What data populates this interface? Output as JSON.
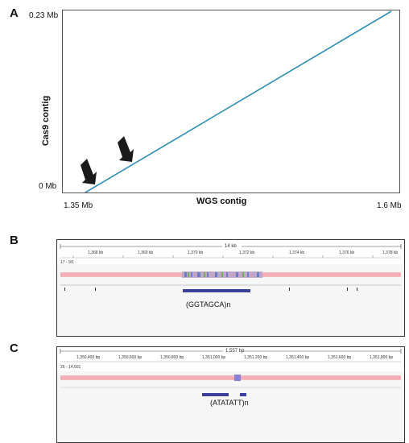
{
  "panelA": {
    "letter": "A",
    "ytop": "0.23 Mb",
    "ybottom": "0 Mb",
    "ylabel": "Cas9 contig",
    "xleft": "1.35 Mb",
    "xright": "1.6 Mb",
    "xlabel": "WGS contig",
    "line_color": "#2e8fb0"
  },
  "panelB": {
    "letter": "B",
    "scale_label": "14 kb",
    "ticks": [
      "1,368 kb",
      "1,369 kb",
      "1,370 kb",
      "1,372 kb",
      "1,374 kb",
      "1,376 kb",
      "1,378 kb"
    ],
    "track_name": "17 - 9/1",
    "repeat_label": "(GGTAGCA)n"
  },
  "panelC": {
    "letter": "C",
    "scale_label": "1,557 bp",
    "ticks": [
      "1,350,400 bp",
      "1,350,600 bp",
      "1,350,800 bp",
      "1,351,000 bp",
      "1,351,200 bp",
      "1,351,400 bp",
      "1,351,600 bp",
      "1,351,800 bp"
    ],
    "track_name": "26 - 14,601",
    "repeat_label": "(ATATATT)n"
  },
  "colors": {
    "read_pink": "#f2b8be",
    "repeat_bar": "#3b3f99",
    "arrow": "#1a1a1a"
  }
}
